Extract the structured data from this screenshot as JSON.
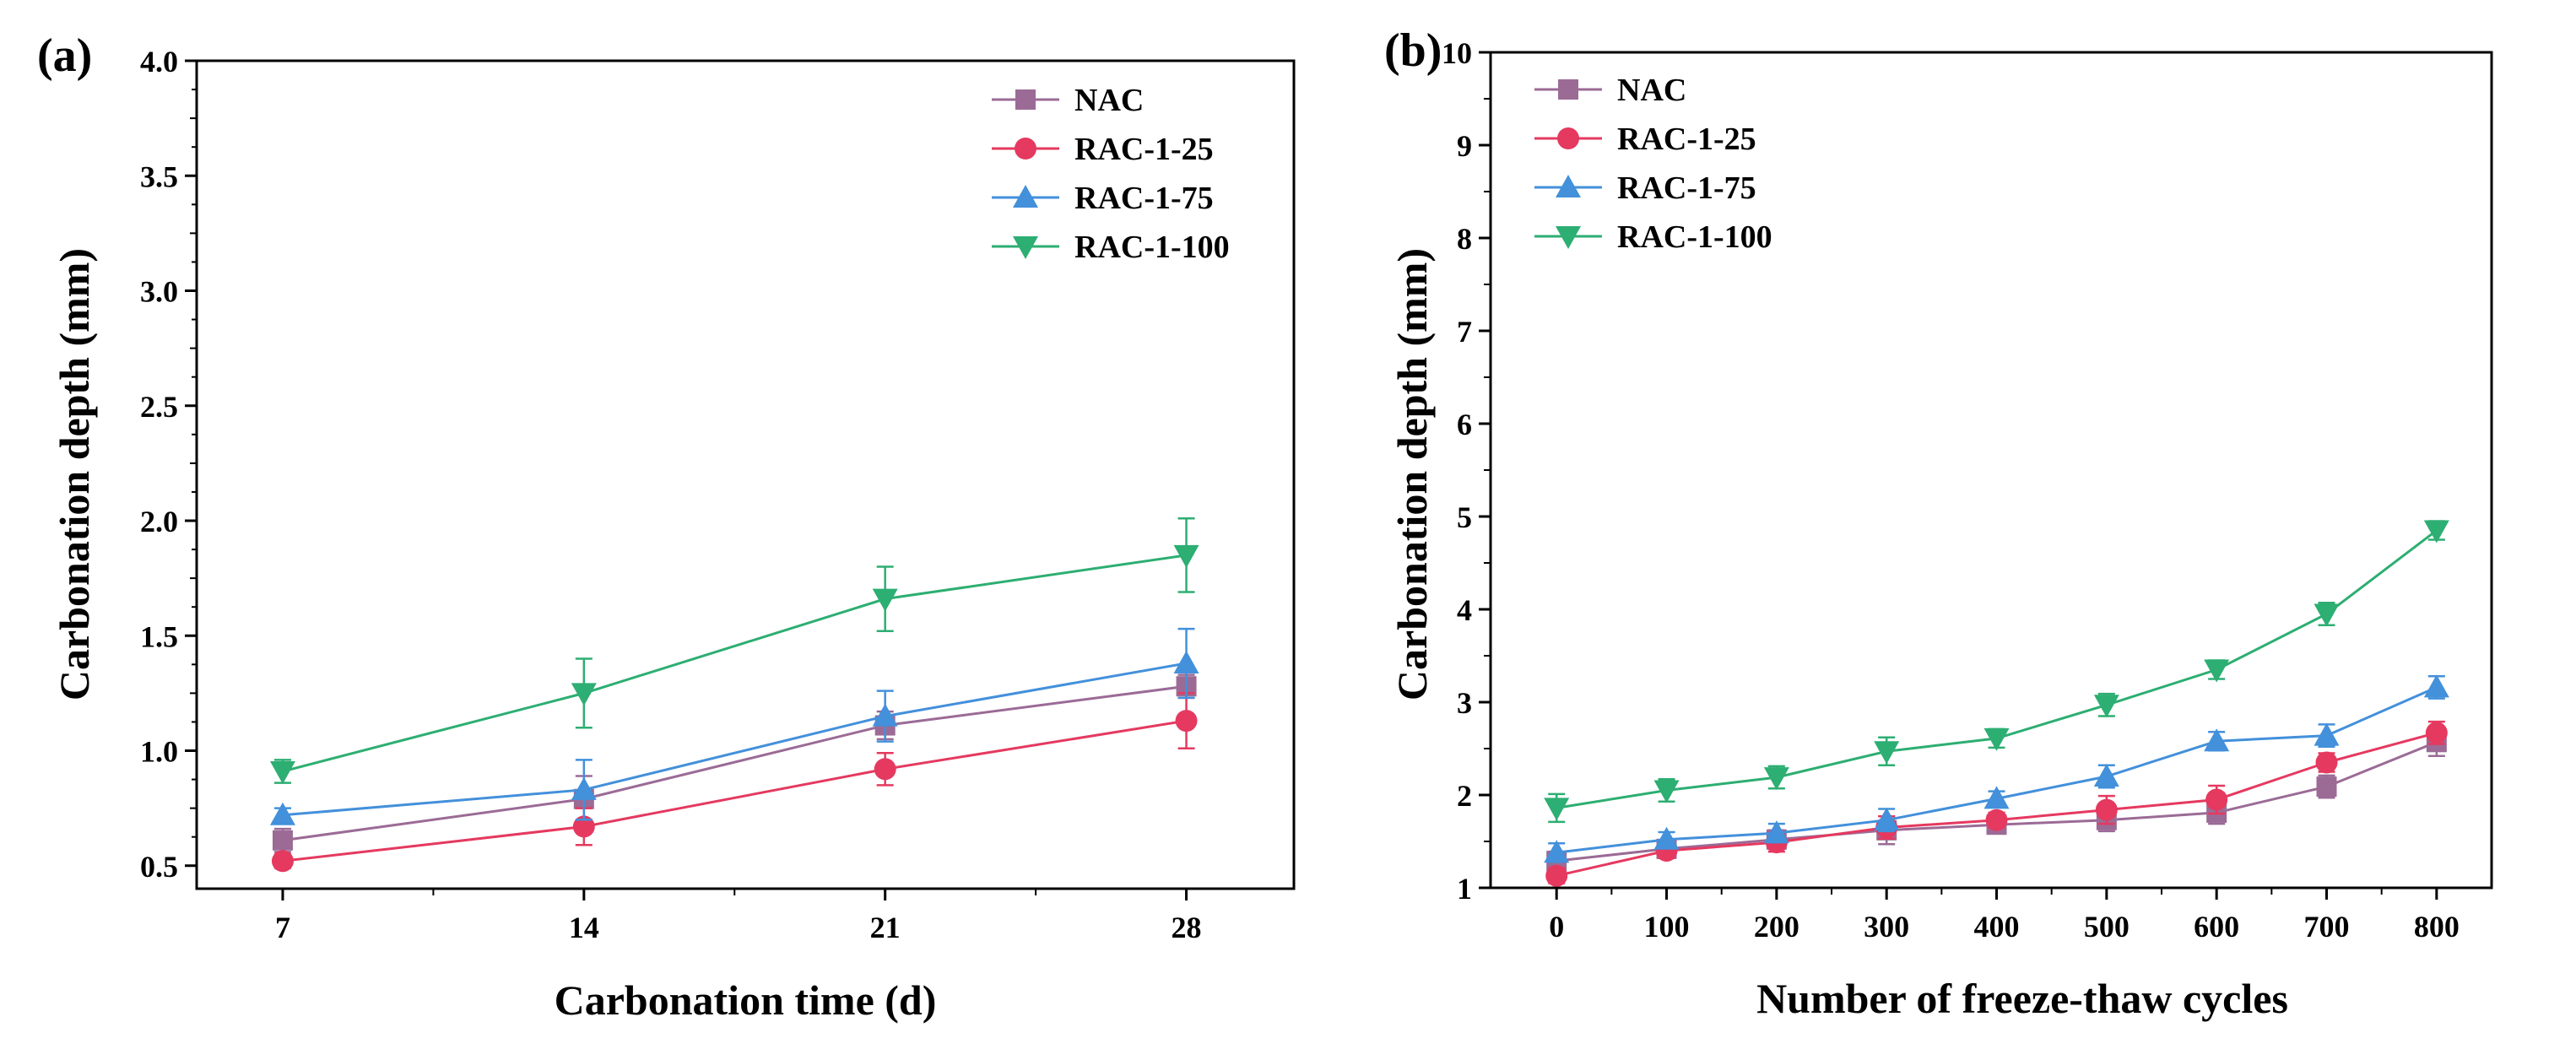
{
  "figure": {
    "panels": [
      "(a)",
      "(b)"
    ]
  },
  "chart_data": [
    {
      "type": "line",
      "panel": "(a)",
      "title": "",
      "xlabel": "Carbonation time (d)",
      "ylabel": "Carbonation depth (mm)",
      "x": [
        7,
        14,
        21,
        28
      ],
      "x_tick_labels": [
        "7",
        "14",
        "21",
        "28"
      ],
      "xlim": [
        5.0,
        30.5
      ],
      "ylim": [
        0.4,
        4.0
      ],
      "y_ticks": [
        0.5,
        1.0,
        1.5,
        2.0,
        2.5,
        3.0,
        3.5,
        4.0
      ],
      "y_tick_labels": [
        "0.5",
        "1.0",
        "1.5",
        "2.0",
        "2.5",
        "3.0",
        "3.5",
        "4.0"
      ],
      "legend_position": "top-right",
      "error_bars": true,
      "series": [
        {
          "name": "NAC",
          "color": "#9B6B96",
          "marker": "square",
          "values": [
            0.61,
            0.79,
            1.11,
            1.28
          ],
          "errors": [
            0.05,
            0.1,
            0.06,
            0.05
          ]
        },
        {
          "name": "RAC-1-25",
          "color": "#E5395F",
          "marker": "circle",
          "values": [
            0.52,
            0.67,
            0.92,
            1.13
          ],
          "errors": [
            0.03,
            0.08,
            0.07,
            0.12
          ]
        },
        {
          "name": "RAC-1-75",
          "color": "#4390DB",
          "marker": "triangle-up",
          "values": [
            0.72,
            0.83,
            1.15,
            1.38
          ],
          "errors": [
            0.03,
            0.13,
            0.11,
            0.15
          ]
        },
        {
          "name": "RAC-1-100",
          "color": "#2DAE72",
          "marker": "triangle-down",
          "values": [
            0.91,
            1.25,
            1.66,
            1.85
          ],
          "errors": [
            0.05,
            0.15,
            0.14,
            0.16
          ]
        }
      ]
    },
    {
      "type": "line",
      "panel": "(b)",
      "title": "",
      "xlabel": "Number of freeze-thaw cycles",
      "ylabel": "Carbonation depth (mm)",
      "x": [
        0,
        100,
        200,
        300,
        400,
        500,
        600,
        700,
        800
      ],
      "x_tick_labels": [
        "0",
        "100",
        "200",
        "300",
        "400",
        "500",
        "600",
        "700",
        "800"
      ],
      "xlim": [
        -60,
        850
      ],
      "ylim": [
        1,
        10
      ],
      "y_ticks": [
        1,
        2,
        3,
        4,
        5,
        6,
        7,
        8,
        9,
        10
      ],
      "y_tick_labels": [
        "1",
        "2",
        "3",
        "4",
        "5",
        "6",
        "7",
        "8",
        "9",
        "10"
      ],
      "legend_position": "top-left",
      "error_bars": true,
      "series": [
        {
          "name": "NAC",
          "color": "#9B6B96",
          "marker": "square",
          "values": [
            1.29,
            1.42,
            1.52,
            1.62,
            1.68,
            1.73,
            1.81,
            2.09,
            2.57
          ],
          "errors": [
            0.1,
            0.08,
            0.1,
            0.15,
            0.08,
            0.12,
            0.12,
            0.12,
            0.15
          ]
        },
        {
          "name": "RAC-1-25",
          "color": "#E5395F",
          "marker": "circle",
          "values": [
            1.13,
            1.4,
            1.49,
            1.65,
            1.73,
            1.84,
            1.95,
            2.35,
            2.67
          ],
          "errors": [
            0.08,
            0.08,
            0.1,
            0.12,
            0.08,
            0.15,
            0.15,
            0.1,
            0.12
          ]
        },
        {
          "name": "RAC-1-75",
          "color": "#4390DB",
          "marker": "triangle-up",
          "values": [
            1.38,
            1.52,
            1.59,
            1.73,
            1.96,
            2.2,
            2.58,
            2.64,
            3.16
          ],
          "errors": [
            0.1,
            0.08,
            0.1,
            0.12,
            0.08,
            0.12,
            0.1,
            0.12,
            0.12
          ]
        },
        {
          "name": "RAC-1-100",
          "color": "#2DAE72",
          "marker": "triangle-down",
          "values": [
            1.86,
            2.05,
            2.19,
            2.47,
            2.61,
            2.97,
            3.35,
            3.95,
            4.85
          ],
          "errors": [
            0.15,
            0.12,
            0.12,
            0.15,
            0.1,
            0.12,
            0.1,
            0.12,
            0.1
          ]
        }
      ]
    }
  ]
}
